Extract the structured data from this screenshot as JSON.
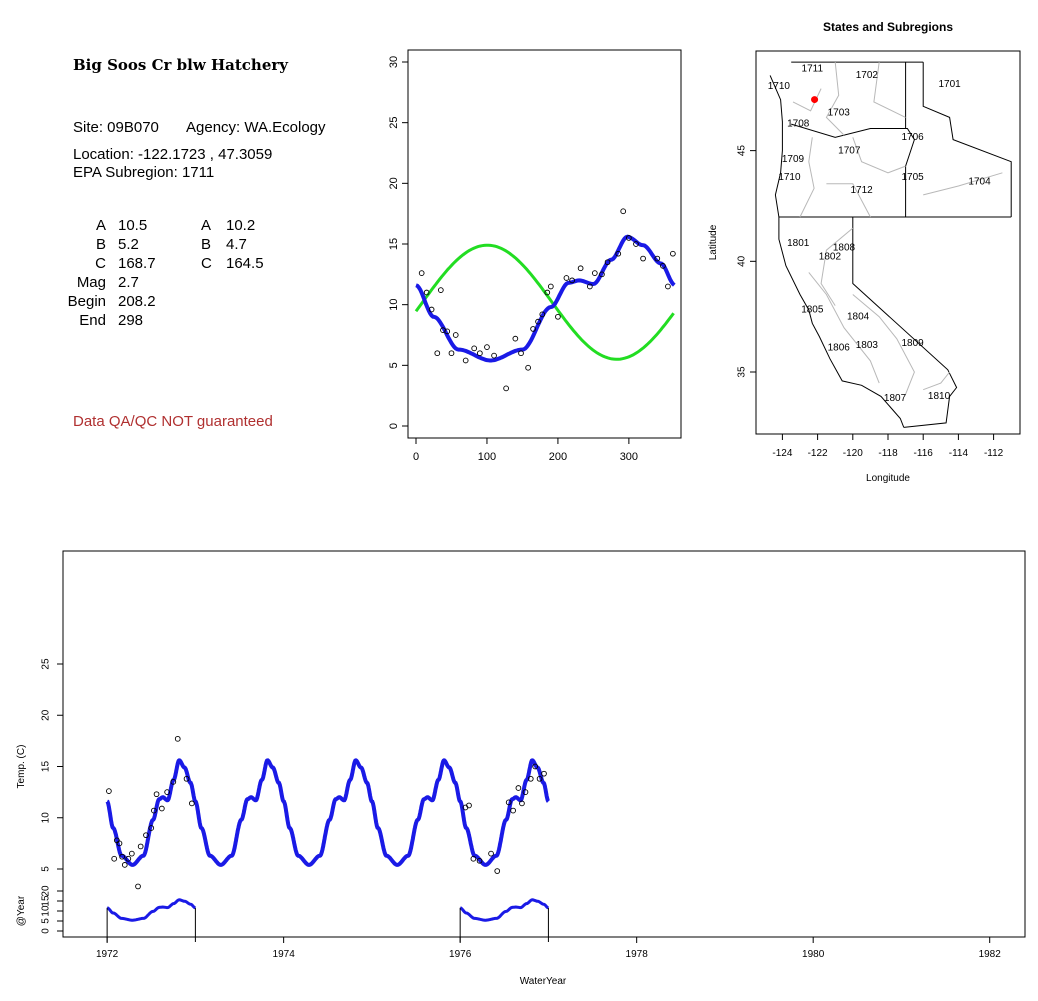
{
  "site": {
    "title": "Big Soos Cr blw Hatchery",
    "site_line": "Site: 09B070",
    "agency_line": "Agency: WA.Ecology",
    "location_line": "Location: -122.1723 , 47.3059",
    "subregion_line": "EPA Subregion: 1711"
  },
  "params": {
    "left": [
      {
        "label": "A",
        "value": "10.5"
      },
      {
        "label": "B",
        "value": "5.2"
      },
      {
        "label": "C",
        "value": "168.7"
      },
      {
        "label": "Mag",
        "value": "2.7"
      },
      {
        "label": "Begin",
        "value": "208.2"
      },
      {
        "label": "End",
        "value": "298"
      }
    ],
    "right": [
      {
        "label": "A",
        "value": "10.2"
      },
      {
        "label": "B",
        "value": "4.7"
      },
      {
        "label": "C",
        "value": "164.5"
      }
    ]
  },
  "qa_note": "Data QA/QC NOT guaranteed",
  "colors": {
    "fit_blue": "#1a1ae6",
    "fit_green": "#22dd22",
    "site_dot": "#ff0000",
    "qa_text": "#b03030"
  },
  "chart_data": [
    {
      "type": "scatter",
      "title": "",
      "xlabel": "",
      "ylabel": "",
      "xlim": [
        0,
        365
      ],
      "ylim": [
        0,
        30
      ],
      "x_ticks": [
        "0",
        "100",
        "200",
        "300"
      ],
      "y_ticks": [
        "0",
        "5",
        "10",
        "15",
        "20",
        "25",
        "30"
      ],
      "points": [
        [
          8,
          12.6
        ],
        [
          15,
          11
        ],
        [
          22,
          9.6
        ],
        [
          30,
          6
        ],
        [
          35,
          11.2
        ],
        [
          38,
          7.9
        ],
        [
          44,
          7.8
        ],
        [
          50,
          6
        ],
        [
          56,
          7.5
        ],
        [
          70,
          5.4
        ],
        [
          82,
          6.4
        ],
        [
          90,
          6
        ],
        [
          100,
          6.5
        ],
        [
          110,
          5.8
        ],
        [
          127,
          3.1
        ],
        [
          140,
          7.2
        ],
        [
          148,
          6
        ],
        [
          158,
          4.8
        ],
        [
          165,
          8
        ],
        [
          172,
          8.6
        ],
        [
          178,
          9.2
        ],
        [
          185,
          11
        ],
        [
          190,
          11.5
        ],
        [
          200,
          9
        ],
        [
          212,
          12.2
        ],
        [
          220,
          12
        ],
        [
          232,
          13
        ],
        [
          245,
          11.5
        ],
        [
          252,
          12.6
        ],
        [
          262,
          12.5
        ],
        [
          270,
          13.5
        ],
        [
          285,
          14.2
        ],
        [
          292,
          17.7
        ],
        [
          300,
          15.5
        ],
        [
          310,
          15
        ],
        [
          320,
          13.8
        ],
        [
          340,
          13.8
        ],
        [
          348,
          13.2
        ],
        [
          355,
          11.5
        ],
        [
          362,
          14.2
        ]
      ],
      "series": [
        {
          "name": "",
          "kind": "smooth-fit",
          "color": "#1a1ae6"
        },
        {
          "name": "",
          "kind": "sine-fit",
          "color": "#22dd22"
        }
      ]
    },
    {
      "type": "map",
      "title": "States and Subregions",
      "xlabel": "Longitude",
      "ylabel": "Latitude",
      "xlim": [
        -125.5,
        -110.5
      ],
      "ylim": [
        32.2,
        49.5
      ],
      "x_ticks": [
        "-124",
        "-122",
        "-120",
        "-118",
        "-116",
        "-114",
        "-112"
      ],
      "y_ticks": [
        "35",
        "40",
        "45"
      ],
      "region_labels": [
        {
          "label": "1701",
          "lon": -114.5,
          "lat": 48.0
        },
        {
          "label": "1702",
          "lon": -119.2,
          "lat": 48.4
        },
        {
          "label": "1703",
          "lon": -120.8,
          "lat": 46.7
        },
        {
          "label": "1704",
          "lon": -112.8,
          "lat": 43.6
        },
        {
          "label": "1705",
          "lon": -116.6,
          "lat": 43.8
        },
        {
          "label": "1706",
          "lon": -116.6,
          "lat": 45.6
        },
        {
          "label": "1707",
          "lon": -120.2,
          "lat": 45.0
        },
        {
          "label": "1708",
          "lon": -123.1,
          "lat": 46.2
        },
        {
          "label": "1709",
          "lon": -123.4,
          "lat": 44.6
        },
        {
          "label": "1710",
          "lon": -123.6,
          "lat": 43.8
        },
        {
          "label": "1711",
          "lon": -122.3,
          "lat": 48.7
        },
        {
          "label": "1710",
          "lon": -124.2,
          "lat": 47.9
        },
        {
          "label": "1712",
          "lon": -119.5,
          "lat": 43.2
        },
        {
          "label": "1801",
          "lon": -123.1,
          "lat": 40.8
        },
        {
          "label": "1802",
          "lon": -121.3,
          "lat": 40.2
        },
        {
          "label": "1808",
          "lon": -120.5,
          "lat": 40.6
        },
        {
          "label": "1805",
          "lon": -122.3,
          "lat": 37.8
        },
        {
          "label": "1804",
          "lon": -119.7,
          "lat": 37.5
        },
        {
          "label": "1806",
          "lon": -120.8,
          "lat": 36.1
        },
        {
          "label": "1803",
          "lon": -119.2,
          "lat": 36.2
        },
        {
          "label": "1809",
          "lon": -116.6,
          "lat": 36.3
        },
        {
          "label": "1807",
          "lon": -117.6,
          "lat": 33.8
        },
        {
          "label": "1810",
          "lon": -115.1,
          "lat": 33.9
        }
      ],
      "site": {
        "lon": -122.1723,
        "lat": 47.3059
      }
    },
    {
      "type": "line",
      "title": "",
      "xlabel": "WaterYear",
      "ylabel": "Temp. (C)",
      "y2label": "@Year",
      "xlim": [
        1971.5,
        1982.4
      ],
      "ylim": [
        0,
        30
      ],
      "x_ticks": [
        "1972",
        "1974",
        "1976",
        "1978",
        "1980",
        "1982"
      ],
      "y_ticks": [
        "5",
        "10",
        "15",
        "20",
        "25"
      ],
      "y2_ticks": [
        "0",
        "5",
        "10",
        "15",
        "20"
      ],
      "line_range": [
        1972.0,
        1977.0
      ],
      "annual_years": [
        1972,
        1976
      ],
      "points": [
        [
          1972.02,
          12.6
        ],
        [
          1972.08,
          6
        ],
        [
          1972.11,
          7.8
        ],
        [
          1972.14,
          7.5
        ],
        [
          1972.17,
          6.2
        ],
        [
          1972.2,
          5.4
        ],
        [
          1972.24,
          6
        ],
        [
          1972.28,
          6.5
        ],
        [
          1972.35,
          3.3
        ],
        [
          1972.38,
          7.2
        ],
        [
          1972.44,
          8.3
        ],
        [
          1972.5,
          9
        ],
        [
          1972.53,
          10.7
        ],
        [
          1972.56,
          12.3
        ],
        [
          1972.62,
          10.9
        ],
        [
          1972.68,
          12.5
        ],
        [
          1972.75,
          13.5
        ],
        [
          1972.8,
          17.7
        ],
        [
          1972.9,
          13.8
        ],
        [
          1972.96,
          11.4
        ],
        [
          1976.06,
          11
        ],
        [
          1976.1,
          11.2
        ],
        [
          1976.15,
          6
        ],
        [
          1976.22,
          5.8
        ],
        [
          1976.35,
          6.5
        ],
        [
          1976.42,
          4.8
        ],
        [
          1976.55,
          11.5
        ],
        [
          1976.6,
          10.7
        ],
        [
          1976.66,
          12.9
        ],
        [
          1976.7,
          11.4
        ],
        [
          1976.74,
          12.5
        ],
        [
          1976.8,
          13.8
        ],
        [
          1976.85,
          15
        ],
        [
          1976.9,
          13.8
        ],
        [
          1976.95,
          14.3
        ]
      ],
      "series": [
        {
          "name": "",
          "color": "#1a1ae6"
        }
      ]
    }
  ]
}
